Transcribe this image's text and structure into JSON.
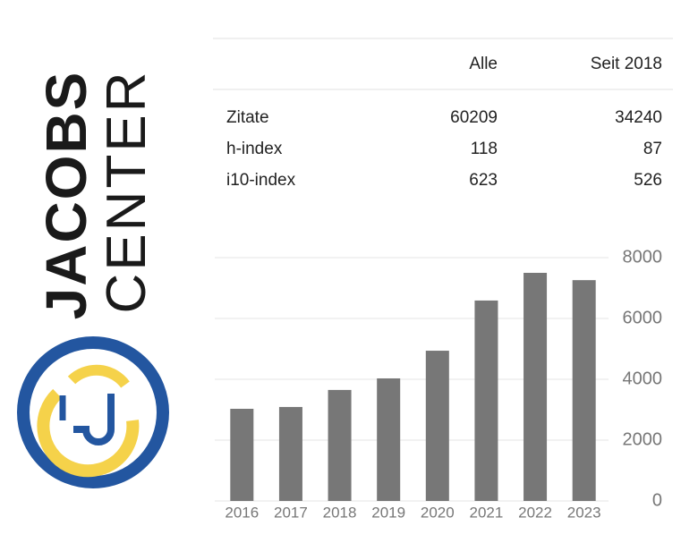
{
  "logo": {
    "line1": "JACOBS",
    "line2": "CENTER"
  },
  "table": {
    "columns": [
      "Alle",
      "Seit 2018"
    ],
    "rows": [
      {
        "label": "Zitate",
        "values": [
          60209,
          34240
        ]
      },
      {
        "label": "h-index",
        "values": [
          118,
          87
        ]
      },
      {
        "label": "i10-index",
        "values": [
          623,
          526
        ]
      }
    ]
  },
  "chart_data": {
    "type": "bar",
    "categories": [
      "2016",
      "2017",
      "2018",
      "2019",
      "2020",
      "2021",
      "2022",
      "2023"
    ],
    "values": [
      3030,
      3090,
      3650,
      4030,
      4940,
      6590,
      7500,
      7260
    ],
    "color": "#777777",
    "ylim": [
      0,
      8000
    ],
    "yticks": [
      0,
      2000,
      4000,
      6000,
      8000
    ],
    "grid": true
  }
}
